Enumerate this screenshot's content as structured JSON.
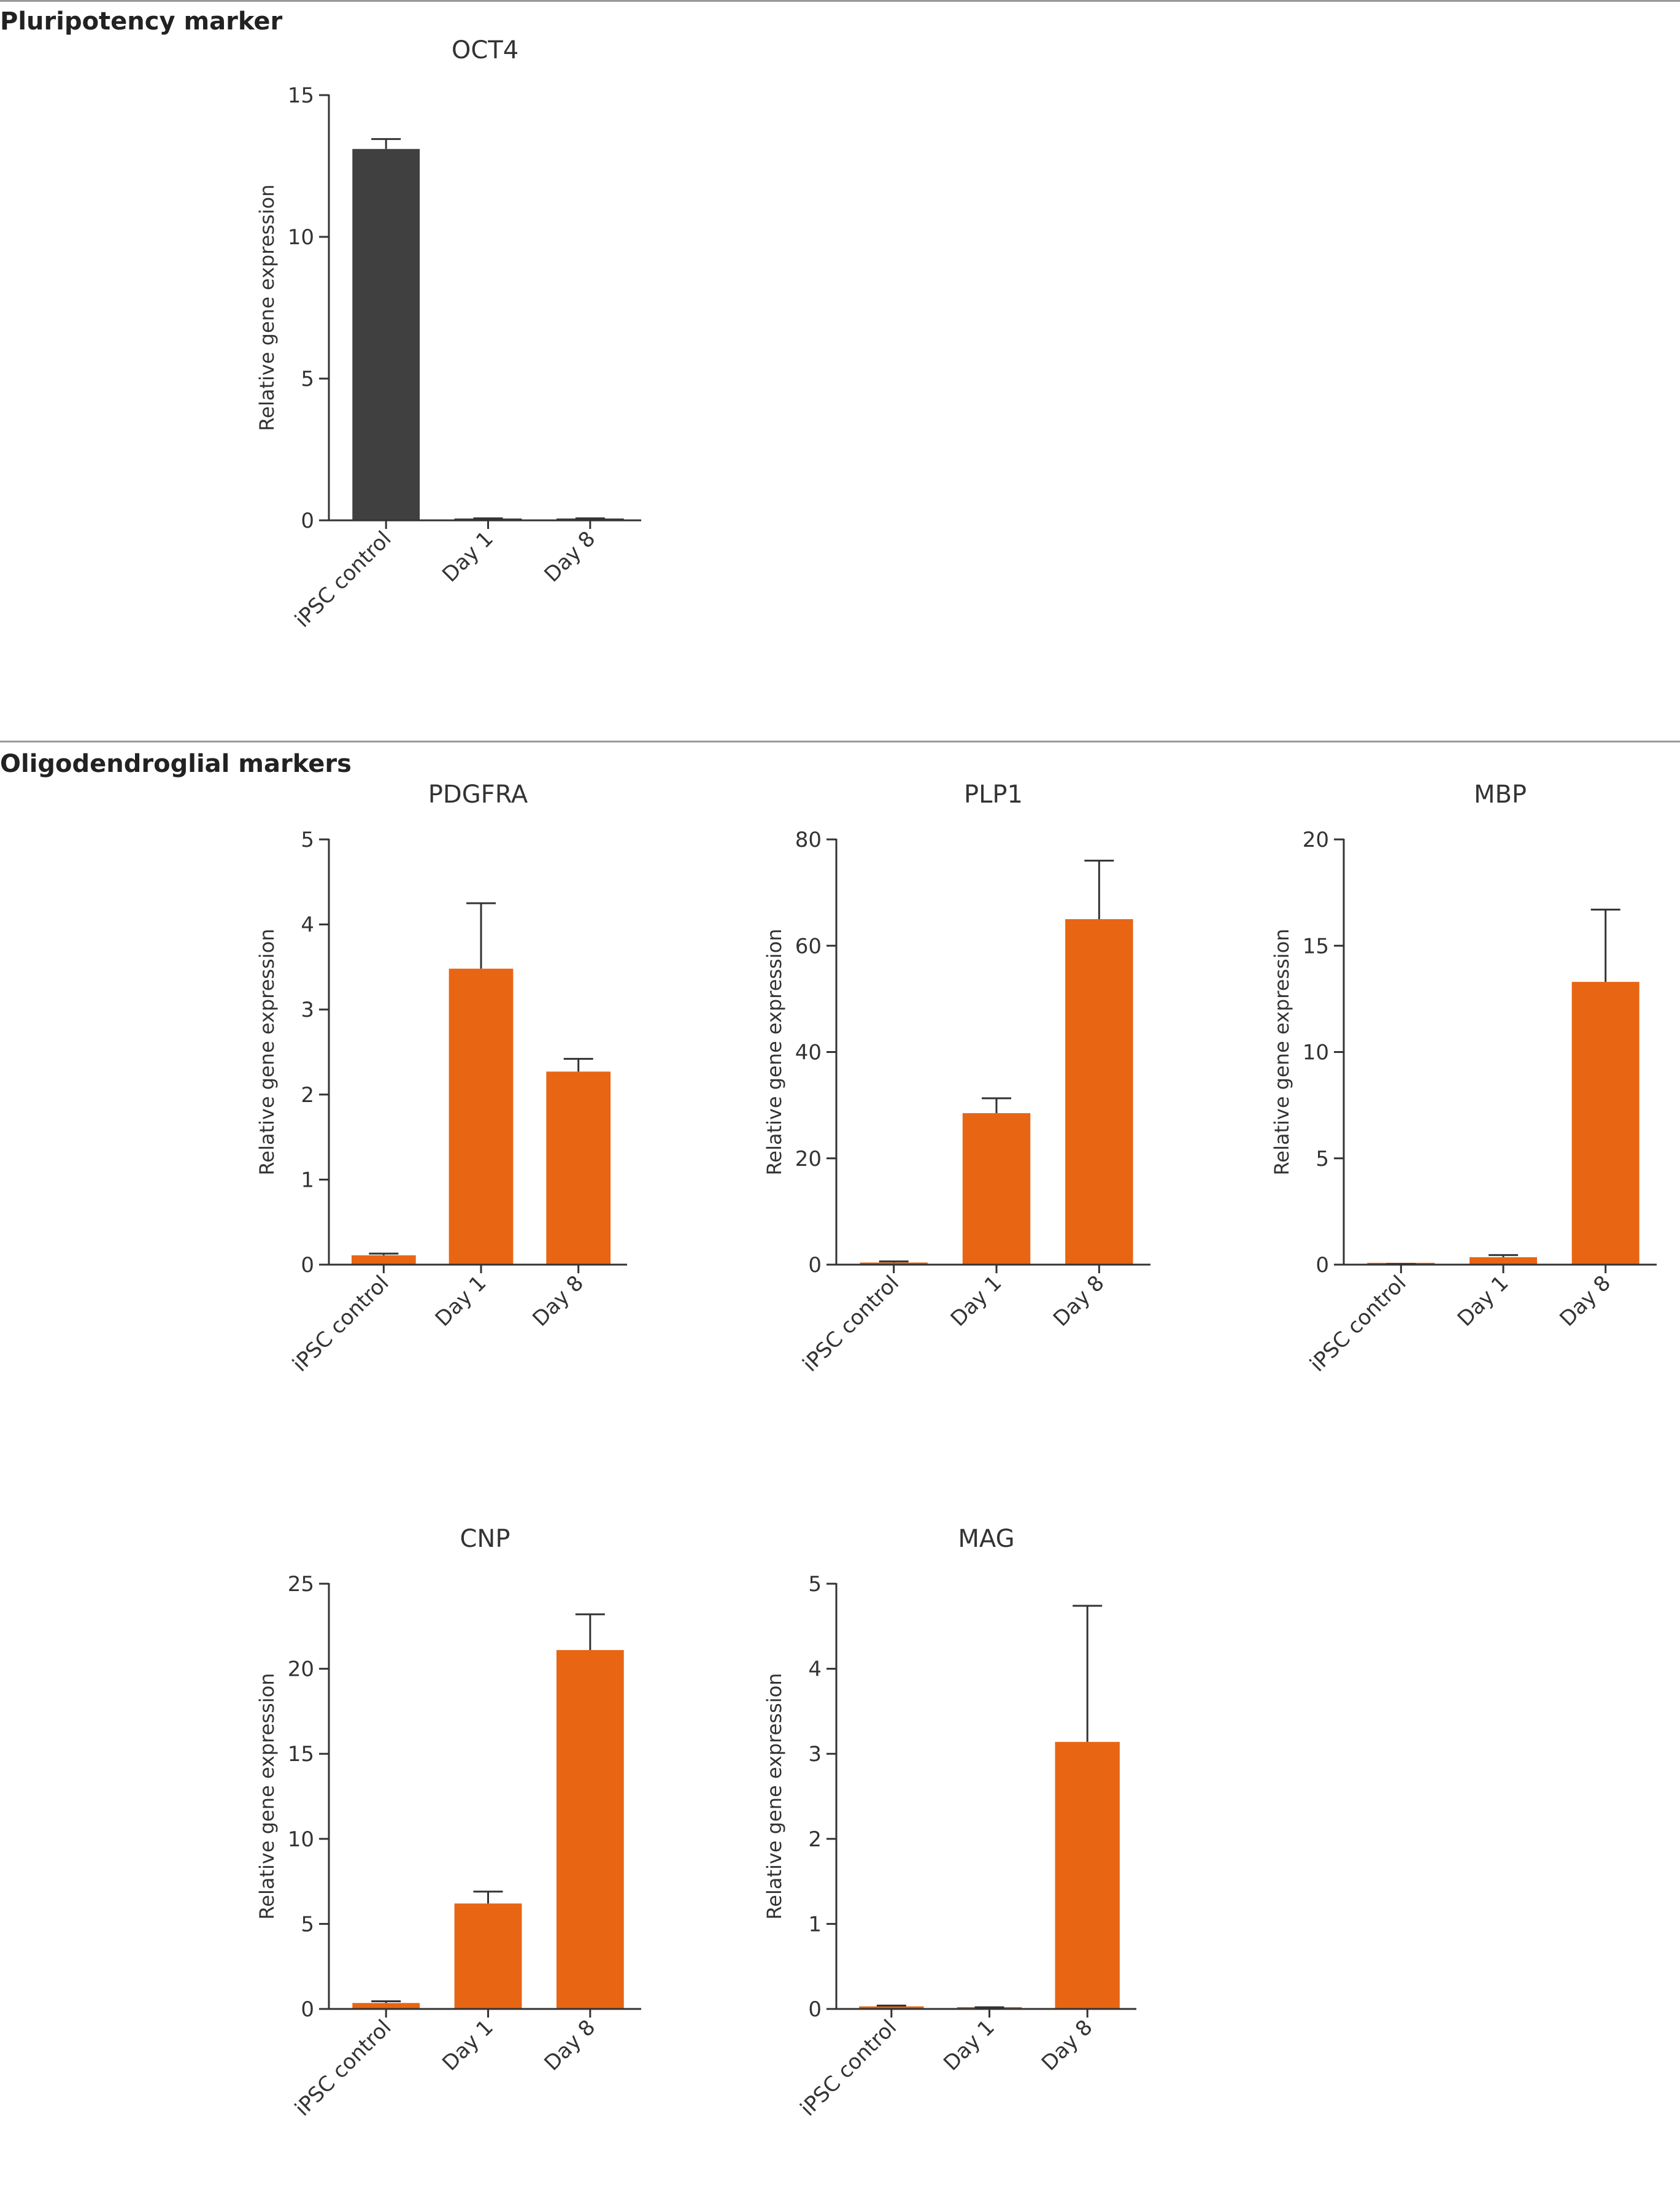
{
  "sections": [
    {
      "title": "Pluripotency marker"
    },
    {
      "title": "Oligodendroglial markers"
    }
  ],
  "colors": {
    "pluripotency_bar": "#404040",
    "oligo_bar": "#e86514",
    "axis": "#333333",
    "rule": "#9a9a9a"
  },
  "chart_data": [
    {
      "type": "bar",
      "section": 0,
      "title": "OCT4",
      "ylabel": "Relative gene expression",
      "categories": [
        "iPSC control",
        "Day 1",
        "Day 8"
      ],
      "values": [
        13.1,
        0.05,
        0.05
      ],
      "errors": [
        0.35,
        0.02,
        0.02
      ],
      "yticks": [
        0,
        5,
        10,
        15
      ],
      "ylim": [
        0,
        15
      ],
      "color": "#404040"
    },
    {
      "type": "bar",
      "section": 1,
      "title": "PDGFRA",
      "ylabel": "Relative gene expression",
      "categories": [
        "iPSC control",
        "Day 1",
        "Day 8"
      ],
      "values": [
        0.11,
        3.48,
        2.27
      ],
      "errors": [
        0.02,
        0.77,
        0.15
      ],
      "yticks": [
        0,
        1,
        2,
        3,
        4,
        5
      ],
      "ylim": [
        0,
        5
      ],
      "color": "#e86514"
    },
    {
      "type": "bar",
      "section": 1,
      "title": "PLP1",
      "ylabel": "Relative gene expression",
      "categories": [
        "iPSC control",
        "Day 1",
        "Day 8"
      ],
      "values": [
        0.4,
        28.5,
        65.0
      ],
      "errors": [
        0.2,
        2.8,
        11.0
      ],
      "yticks": [
        0,
        20,
        40,
        60,
        80
      ],
      "ylim": [
        0,
        80
      ],
      "color": "#e86514"
    },
    {
      "type": "bar",
      "section": 1,
      "title": "MBP",
      "ylabel": "Relative gene expression",
      "categories": [
        "iPSC control",
        "Day 1",
        "Day 8"
      ],
      "values": [
        0.02,
        0.35,
        13.3
      ],
      "errors": [
        0.01,
        0.1,
        3.4
      ],
      "yticks": [
        0,
        5,
        10,
        15,
        20
      ],
      "ylim": [
        0,
        20
      ],
      "color": "#e86514"
    },
    {
      "type": "bar",
      "section": 1,
      "title": "CNP",
      "ylabel": "Relative gene expression",
      "categories": [
        "iPSC control",
        "Day 1",
        "Day 8"
      ],
      "values": [
        0.35,
        6.2,
        21.1
      ],
      "errors": [
        0.1,
        0.7,
        2.1
      ],
      "yticks": [
        0,
        5,
        10,
        15,
        20,
        25
      ],
      "ylim": [
        0,
        25
      ],
      "color": "#e86514"
    },
    {
      "type": "bar",
      "section": 1,
      "title": "MAG",
      "ylabel": "Relative gene expression",
      "categories": [
        "iPSC control",
        "Day 1",
        "Day 8"
      ],
      "values": [
        0.03,
        0.01,
        3.14
      ],
      "errors": [
        0.01,
        0.01,
        1.6
      ],
      "yticks": [
        0,
        1,
        2,
        3,
        4,
        5
      ],
      "ylim": [
        0,
        5
      ],
      "color": "#e86514"
    }
  ]
}
